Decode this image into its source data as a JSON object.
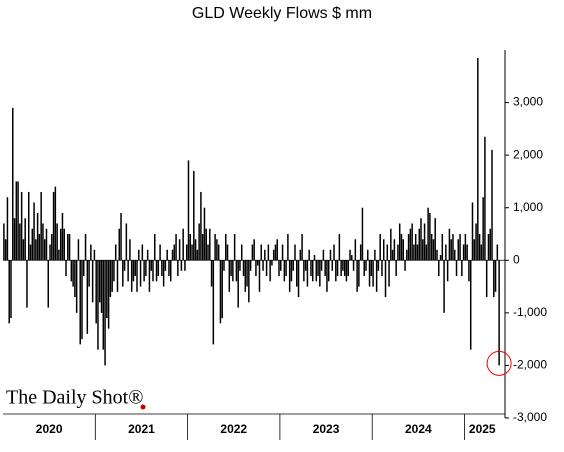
{
  "chart_data": {
    "type": "bar",
    "title": "GLD Weekly Flows $ mm",
    "source": "The Daily Shot®",
    "color": "#000000",
    "categories": [
      "2020",
      "2021",
      "2022",
      "2023",
      "2024",
      "2025"
    ],
    "values": [
      [
        700,
        400,
        1200,
        -1200,
        -1100,
        2900,
        800,
        1500,
        1500,
        700,
        1300,
        400,
        800,
        -900,
        1300,
        300,
        600,
        1100,
        400,
        900,
        500,
        1300,
        700,
        400,
        600,
        -900,
        300,
        500,
        1300,
        1400,
        700,
        200,
        600,
        900,
        600,
        -300,
        500,
        500,
        -400,
        -500,
        -700,
        -1000,
        400,
        -1600,
        -1500,
        -300,
        500,
        -1400,
        -500,
        300,
        -800,
        200
      ],
      [
        -1200,
        -1700,
        -800,
        -1000,
        -1700,
        -2000,
        -1100,
        -1300,
        -700,
        -600,
        -400,
        300,
        -600,
        600,
        900,
        -500,
        -200,
        700,
        -400,
        400,
        -600,
        -400,
        -300,
        -600,
        200,
        -500,
        300,
        -400,
        -300,
        200,
        -600,
        -200,
        -400,
        500,
        -400,
        -300,
        300,
        -300,
        -500,
        -200,
        200,
        -300,
        -400,
        200,
        300,
        500,
        -300,
        400,
        -200,
        600,
        -200,
        300
      ],
      [
        1900,
        500,
        300,
        1700,
        400,
        200,
        700,
        1300,
        500,
        1000,
        600,
        300,
        600,
        -500,
        -1600,
        500,
        400,
        300,
        -1200,
        -1100,
        -200,
        500,
        300,
        -600,
        -300,
        -400,
        500,
        -400,
        -900,
        -200,
        300,
        -300,
        -600,
        -500,
        -800,
        -200,
        300,
        400,
        -300,
        -100,
        -600,
        300,
        -200,
        200,
        -300,
        300,
        -400,
        -100,
        200,
        300,
        400,
        -300
      ],
      [
        -200,
        300,
        -400,
        -300,
        500,
        -600,
        -400,
        -200,
        300,
        -500,
        -700,
        200,
        500,
        -400,
        -200,
        -500,
        200,
        -300,
        -400,
        100,
        -400,
        -300,
        -500,
        -200,
        200,
        -300,
        -600,
        -400,
        200,
        -200,
        300,
        -400,
        -300,
        500,
        -300,
        -200,
        -300,
        -400,
        -300,
        200,
        100,
        -200,
        400,
        -600,
        -500,
        300,
        1000,
        -300,
        -200,
        200,
        -500,
        -300
      ],
      [
        -500,
        200,
        -600,
        -200,
        500,
        -300,
        400,
        -700,
        300,
        -500,
        600,
        200,
        400,
        -300,
        300,
        700,
        500,
        400,
        -200,
        200,
        500,
        600,
        700,
        300,
        500,
        300,
        600,
        800,
        400,
        700,
        300,
        1000,
        900,
        500,
        400,
        800,
        200,
        -300,
        100,
        500,
        -1000,
        300,
        -400,
        600,
        400,
        500,
        200,
        -300,
        400,
        500,
        -300,
        300
      ],
      [
        500,
        300,
        -400,
        -1700,
        1100,
        400,
        700,
        3850,
        500,
        300,
        1200,
        2350,
        -700,
        500,
        600,
        2100,
        -700,
        -600,
        300,
        -2000
      ]
    ],
    "ylim": [
      -3000,
      4000
    ],
    "yticks": [
      {
        "value": -3000,
        "label": "-3,000"
      },
      {
        "value": -2000,
        "label": "-2,000"
      },
      {
        "value": -1000,
        "label": "-1,000"
      },
      0,
      {
        "value": 1000,
        "label": "1,000"
      },
      {
        "value": 2000,
        "label": "2,000"
      },
      {
        "value": 3000,
        "label": "3,000"
      }
    ]
  }
}
